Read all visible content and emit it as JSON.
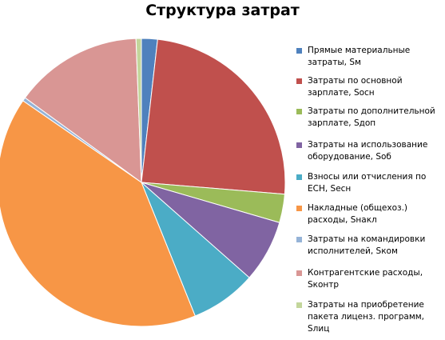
{
  "chart_data": {
    "type": "pie",
    "title": "Структура затрат",
    "legend_position": "right",
    "slices": [
      {
        "label": "Прямые материальные затраты, Sм",
        "value": 1.8,
        "color": "#4F81BD"
      },
      {
        "label": "Затраты по основной зарплате, Sосн",
        "value": 24.5,
        "color": "#C0504D"
      },
      {
        "label": "Затраты по дополнительной зарплате, Sдоп",
        "value": 3.2,
        "color": "#9BBB59"
      },
      {
        "label": "Затраты на использование оборудование, Sоб",
        "value": 7.0,
        "color": "#8064A2"
      },
      {
        "label": "Взносы или отчисления по ЕСН, Sесн",
        "value": 7.4,
        "color": "#4BACC6"
      },
      {
        "label": "Накладные (общехоз.) расходы, Sнакл",
        "value": 40.7,
        "color": "#F79646"
      },
      {
        "label": "Затраты на командировки исполнителей,  Sком",
        "value": 0.4,
        "color": "#95B3D7"
      },
      {
        "label": "Контрагентские расходы, Sконтр",
        "value": 14.4,
        "color": "#D99694"
      },
      {
        "label": "Затраты на приобретение  пакета лиценз. программ, Sлиц",
        "value": 0.6,
        "color": "#C3D69B"
      }
    ]
  }
}
